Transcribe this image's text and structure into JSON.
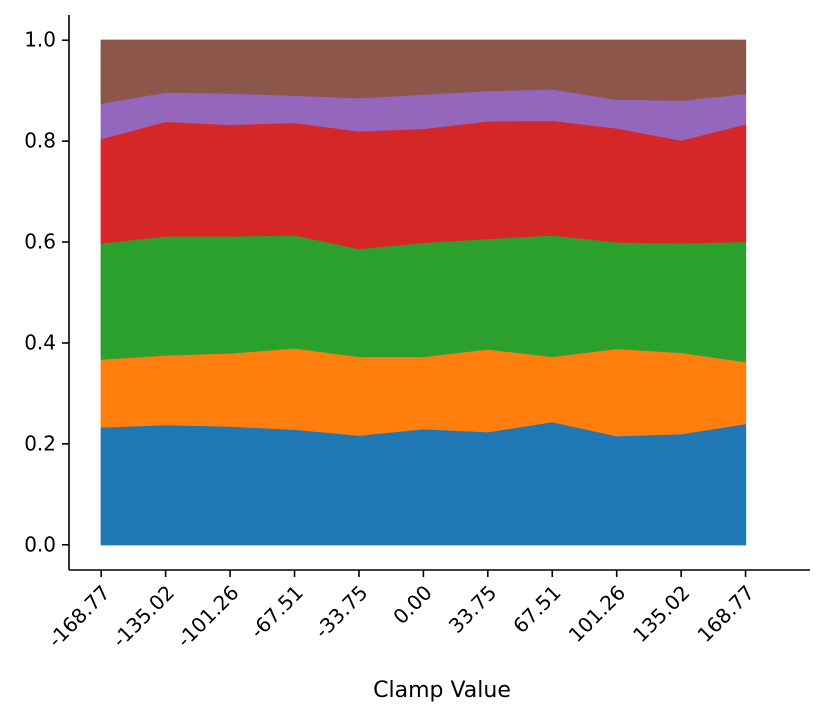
{
  "chart_data": {
    "type": "area",
    "stacked": true,
    "title": "",
    "xlabel": "Clamp Value",
    "ylabel": "",
    "x": [
      -168.77,
      -135.02,
      -101.26,
      -67.51,
      -33.75,
      0.0,
      33.75,
      67.51,
      101.26,
      135.02,
      168.77
    ],
    "x_tick_labels": [
      "-168.77",
      "-135.02",
      "-101.26",
      "-67.51",
      "-33.75",
      "0.00",
      "33.75",
      "67.51",
      "101.26",
      "135.02",
      "168.77"
    ],
    "y_ticks": [
      0.0,
      0.2,
      0.4,
      0.6,
      0.8,
      1.0
    ],
    "y_tick_labels": [
      "0.0",
      "0.2",
      "0.4",
      "0.6",
      "0.8",
      "1.0"
    ],
    "ylim": [
      -0.05,
      1.05
    ],
    "xlim": [
      -185.64,
      202.52
    ],
    "grid": false,
    "legend": false,
    "series": [
      {
        "color": "#1f77b4",
        "values": [
          0.233,
          0.238,
          0.235,
          0.229,
          0.217,
          0.23,
          0.224,
          0.244,
          0.216,
          0.22,
          0.24
        ]
      },
      {
        "color": "#ff7f0e",
        "values": [
          0.135,
          0.138,
          0.145,
          0.161,
          0.156,
          0.143,
          0.164,
          0.129,
          0.173,
          0.161,
          0.123
        ]
      },
      {
        "color": "#2ca02c",
        "values": [
          0.23,
          0.236,
          0.232,
          0.224,
          0.214,
          0.226,
          0.219,
          0.241,
          0.211,
          0.217,
          0.238
        ]
      },
      {
        "color": "#d62728",
        "values": [
          0.207,
          0.227,
          0.221,
          0.223,
          0.233,
          0.226,
          0.233,
          0.227,
          0.226,
          0.204,
          0.233
        ]
      },
      {
        "color": "#9467bd",
        "values": [
          0.07,
          0.058,
          0.062,
          0.054,
          0.066,
          0.068,
          0.06,
          0.062,
          0.057,
          0.079,
          0.06
        ]
      },
      {
        "color": "#8c564b",
        "values": [
          0.125,
          0.103,
          0.105,
          0.109,
          0.114,
          0.107,
          0.1,
          0.097,
          0.117,
          0.119,
          0.106
        ]
      }
    ]
  }
}
